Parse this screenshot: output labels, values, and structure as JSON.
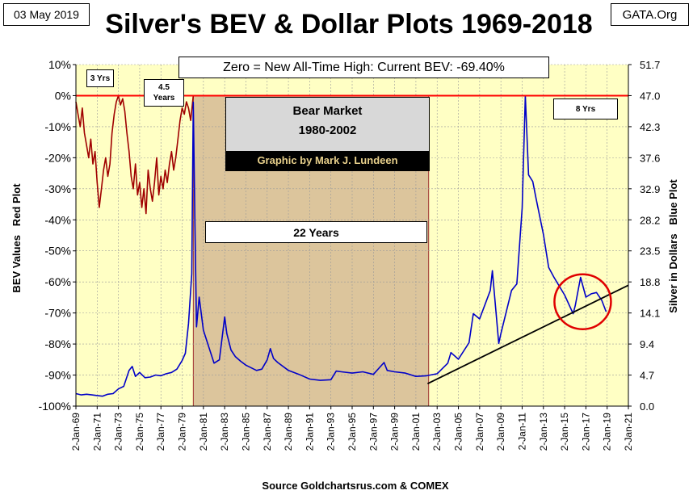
{
  "header": {
    "date": "03 May 2019",
    "source_tag": "GATA.Org",
    "title": "Silver's BEV & Dollar Plots 1969-2018"
  },
  "chart_data": {
    "type": "line",
    "title": "Silver's BEV & Dollar Plots 1969-2018",
    "ylabel_left": "BEV Values   Red Plot",
    "ylabel_right": "Silver in Dollars   Blue Plot",
    "source": "Source Goldchartsrus.com & COMEX",
    "xlim": [
      1969,
      2021
    ],
    "ylim_left": [
      -100,
      10
    ],
    "ylim_right": [
      0.0,
      51.7
    ],
    "x_ticks": [
      "2-Jan-69",
      "2-Jan-71",
      "2-Jan-73",
      "2-Jan-75",
      "2-Jan-77",
      "2-Jan-79",
      "2-Jan-81",
      "2-Jan-83",
      "2-Jan-85",
      "2-Jan-87",
      "2-Jan-89",
      "2-Jan-91",
      "2-Jan-93",
      "2-Jan-95",
      "2-Jan-97",
      "2-Jan-99",
      "2-Jan-01",
      "2-Jan-03",
      "2-Jan-05",
      "2-Jan-07",
      "2-Jan-09",
      "2-Jan-11",
      "2-Jan-13",
      "2-Jan-15",
      "2-Jan-17",
      "2-Jan-19",
      "2-Jan-21"
    ],
    "y_ticks_left": [
      "10%",
      "0%",
      "-10%",
      "-20%",
      "-30%",
      "-40%",
      "-50%",
      "-60%",
      "-70%",
      "-80%",
      "-90%",
      "-100%"
    ],
    "y_ticks_right": [
      "51.7",
      "47.0",
      "42.3",
      "37.6",
      "32.9",
      "28.2",
      "23.5",
      "18.8",
      "14.1",
      "9.4",
      "4.7",
      "0.0"
    ],
    "bear_market": {
      "start": 1980.05,
      "end": 2002.2,
      "label_line1": "Bear Market",
      "label_line2": "1980-2002",
      "credit": "Graphic by Mark J. Lundeen",
      "duration_label": "22 Years"
    },
    "annotations": {
      "current_bev": "Zero = New All-Time High: Current BEV: -69.40%",
      "span_1": "3 Yrs",
      "span_2_line1": "4.5",
      "span_2_line2": "Years",
      "span_3": "8 Yrs"
    },
    "series": [
      {
        "name": "Silver BEV (Red Plot)",
        "color": "#a00000",
        "axis": "left",
        "x": [
          1969.0,
          1969.2,
          1969.4,
          1969.6,
          1969.8,
          1970.0,
          1970.2,
          1970.4,
          1970.6,
          1970.8,
          1971.0,
          1971.2,
          1971.4,
          1971.6,
          1971.8,
          1972.0,
          1972.2,
          1972.4,
          1972.6,
          1972.8,
          1973.0,
          1973.2,
          1973.4,
          1973.6,
          1973.8,
          1974.0,
          1974.2,
          1974.4,
          1974.6,
          1974.8,
          1975.0,
          1975.2,
          1975.4,
          1975.6,
          1975.8,
          1976.0,
          1976.2,
          1976.4,
          1976.6,
          1976.8,
          1977.0,
          1977.2,
          1977.4,
          1977.6,
          1977.8,
          1978.0,
          1978.2,
          1978.4,
          1978.6,
          1978.8,
          1979.0,
          1979.2,
          1979.4,
          1979.6,
          1979.8,
          1980.05
        ],
        "values": [
          -2,
          -6,
          -10,
          -4,
          -12,
          -16,
          -20,
          -14,
          -22,
          -18,
          -28,
          -36,
          -30,
          -24,
          -20,
          -26,
          -22,
          -12,
          -6,
          -2,
          0,
          -3,
          -1,
          -5,
          -12,
          -18,
          -26,
          -30,
          -22,
          -32,
          -28,
          -36,
          -30,
          -38,
          -24,
          -30,
          -34,
          -28,
          -20,
          -32,
          -26,
          -30,
          -24,
          -28,
          -22,
          -18,
          -24,
          -20,
          -14,
          -8,
          -4,
          -6,
          -2,
          -4,
          -8,
          0
        ]
      },
      {
        "name": "Silver Price USD (Blue Plot)",
        "color": "#0000c8",
        "axis": "right",
        "x": [
          1969.0,
          1969.5,
          1970.0,
          1970.5,
          1971.0,
          1971.5,
          1972.0,
          1972.5,
          1973.0,
          1973.5,
          1974.0,
          1974.3,
          1974.6,
          1975.0,
          1975.5,
          1976.0,
          1976.5,
          1977.0,
          1977.5,
          1978.0,
          1978.5,
          1979.0,
          1979.3,
          1979.6,
          1979.9,
          1980.05,
          1980.2,
          1980.35,
          1980.6,
          1981.0,
          1981.5,
          1982.0,
          1982.5,
          1983.0,
          1983.2,
          1983.6,
          1984.0,
          1984.5,
          1985.0,
          1986.0,
          1986.5,
          1987.0,
          1987.3,
          1987.6,
          1988.0,
          1989.0,
          1990.0,
          1991.0,
          1992.0,
          1993.0,
          1993.5,
          1994.0,
          1995.0,
          1996.0,
          1997.0,
          1998.0,
          1998.3,
          1999.0,
          2000.0,
          2001.0,
          2002.0,
          2003.0,
          2004.0,
          2004.3,
          2005.0,
          2006.0,
          2006.4,
          2007.0,
          2008.0,
          2008.2,
          2008.8,
          2009.0,
          2010.0,
          2010.5,
          2011.0,
          2011.3,
          2011.6,
          2012.0,
          2012.3,
          2013.0,
          2013.5,
          2014.0,
          2015.0,
          2015.8,
          2016.0,
          2016.5,
          2017.0,
          2017.5,
          2018.0,
          2018.5,
          2018.9
        ],
        "values": [
          1.9,
          1.7,
          1.8,
          1.7,
          1.6,
          1.5,
          1.8,
          1.9,
          2.6,
          3.0,
          5.4,
          6.0,
          4.5,
          5.1,
          4.3,
          4.4,
          4.7,
          4.6,
          4.9,
          5.1,
          5.6,
          6.9,
          8.0,
          12.5,
          20.0,
          46.0,
          28.0,
          12.0,
          16.5,
          11.5,
          9.0,
          6.5,
          7.0,
          13.5,
          11.0,
          8.5,
          7.5,
          6.8,
          6.2,
          5.4,
          5.6,
          7.0,
          8.7,
          7.2,
          6.6,
          5.4,
          4.8,
          4.1,
          3.9,
          4.0,
          5.3,
          5.2,
          5.0,
          5.2,
          4.8,
          6.6,
          5.4,
          5.2,
          5.0,
          4.5,
          4.6,
          4.9,
          6.5,
          8.1,
          7.1,
          9.6,
          14.0,
          13.2,
          17.5,
          20.5,
          9.5,
          11.0,
          17.5,
          18.5,
          30.0,
          47.0,
          35.0,
          34.0,
          31.5,
          26.0,
          21.0,
          19.5,
          16.8,
          14.0,
          15.2,
          19.5,
          16.5,
          17.0,
          17.2,
          16.0,
          14.3
        ]
      },
      {
        "name": "Trend line",
        "color": "#000000",
        "axis": "right",
        "x": [
          2002.1,
          2021.0
        ],
        "values": [
          3.4,
          18.3
        ]
      }
    ]
  }
}
